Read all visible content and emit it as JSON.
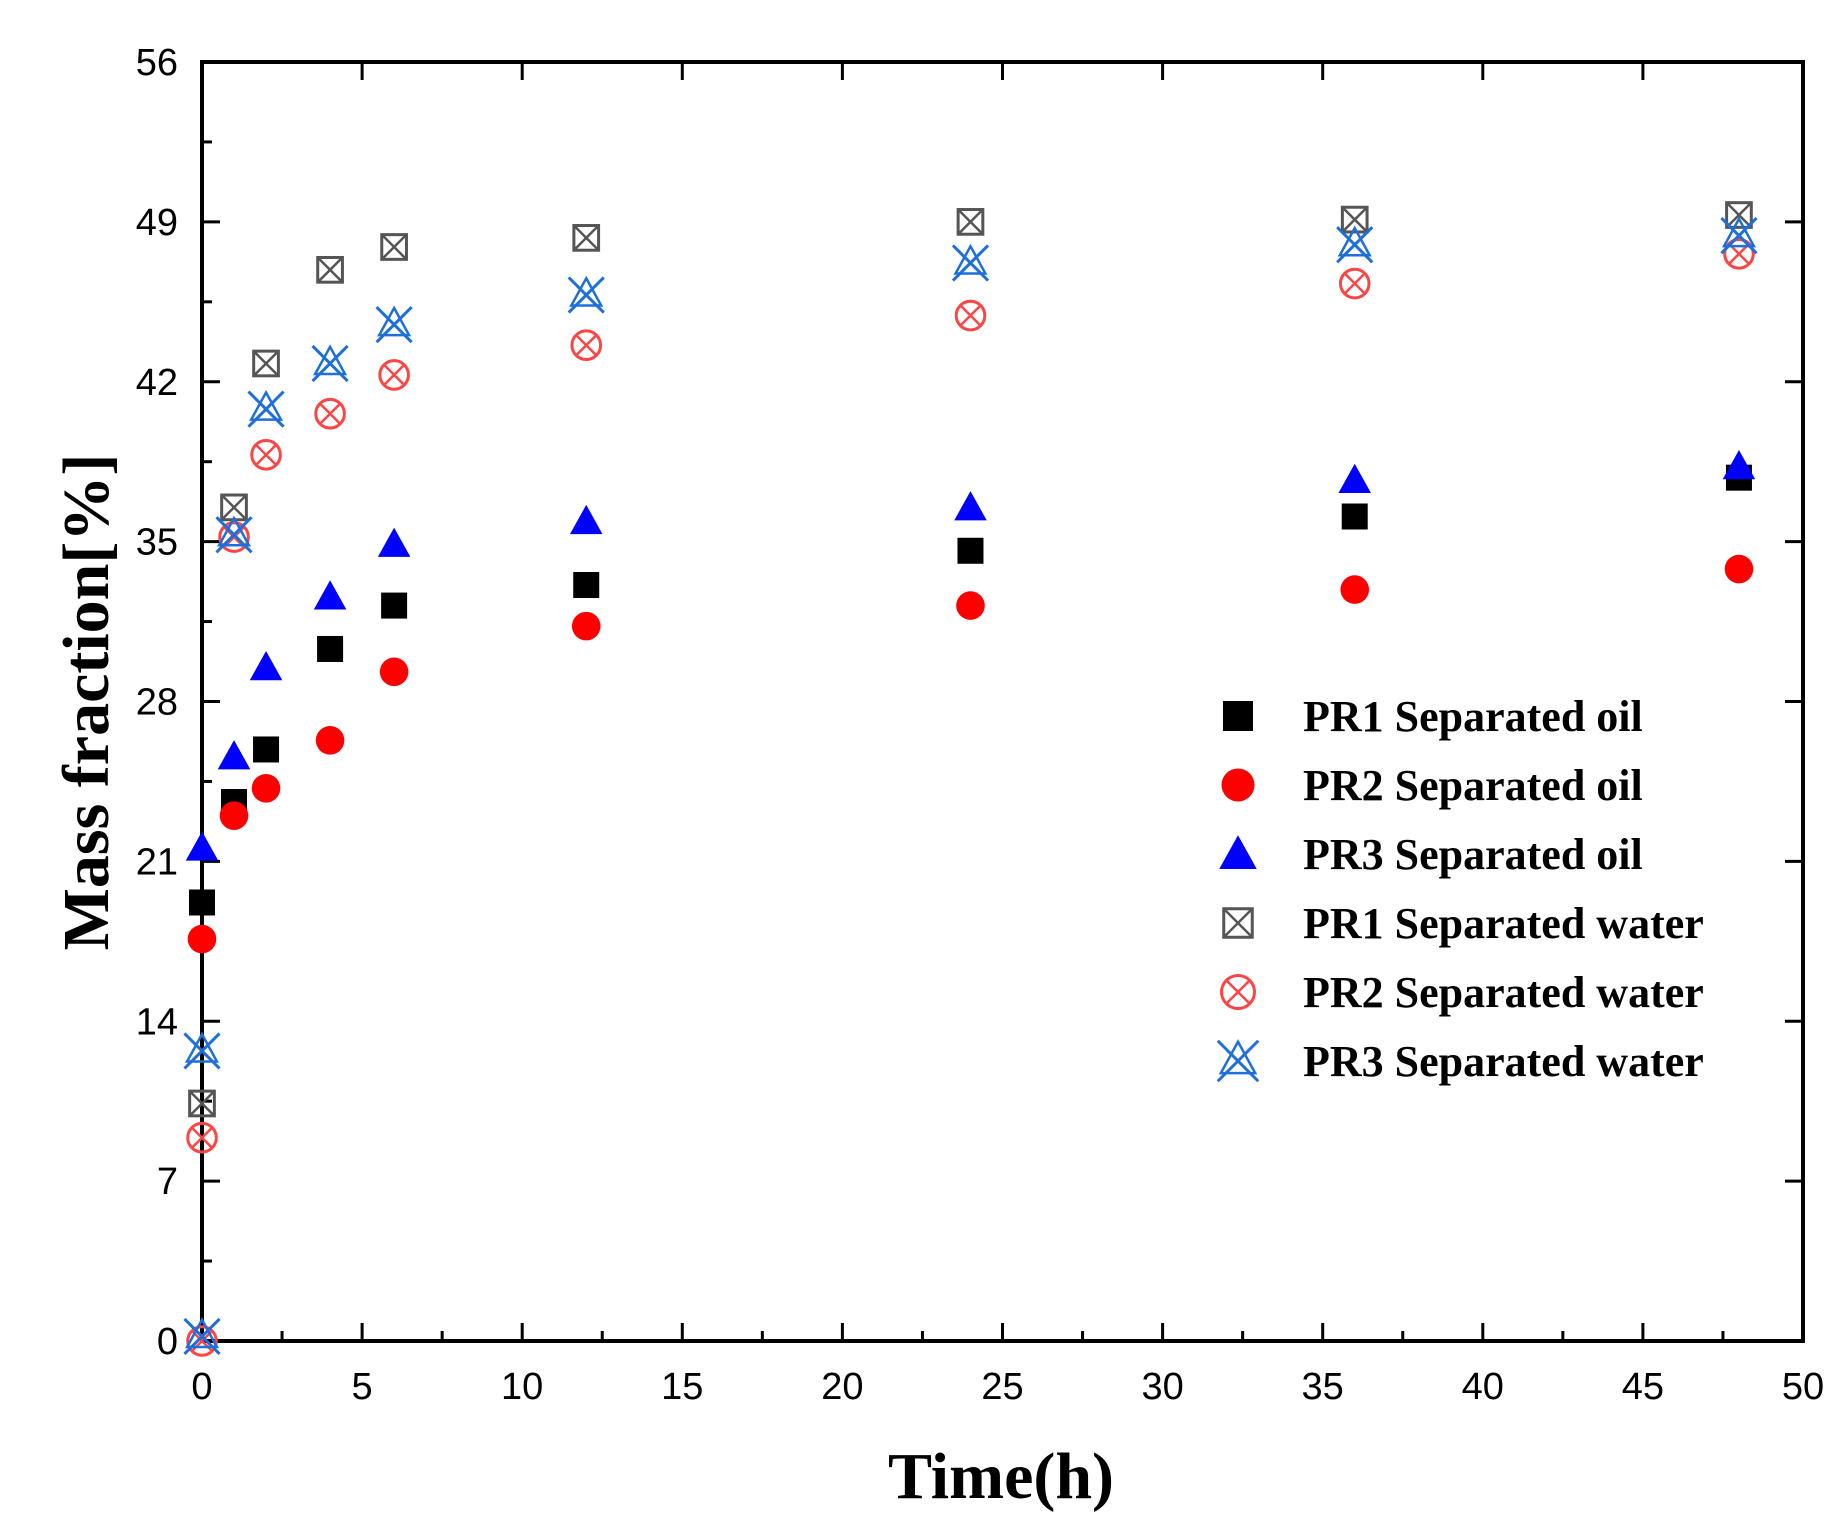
{
  "chart_data": {
    "type": "scatter",
    "title": "",
    "xlabel": "Time(h)",
    "ylabel": "Mass fraction[%]",
    "xlim": [
      0,
      50
    ],
    "ylim": [
      0,
      56
    ],
    "xticks": [
      0,
      5,
      10,
      15,
      20,
      25,
      30,
      35,
      40,
      45,
      50
    ],
    "yticks": [
      0,
      7,
      14,
      21,
      28,
      35,
      42,
      49,
      56
    ],
    "grid": false,
    "legend_position": "right",
    "series": [
      {
        "name": "PR1 Separated oil",
        "marker": "filled-square",
        "color": "#000000",
        "points": [
          [
            0,
            19.2
          ],
          [
            1,
            23.6
          ],
          [
            2,
            25.9
          ],
          [
            4,
            30.3
          ],
          [
            6,
            32.2
          ],
          [
            12,
            33.1
          ],
          [
            24,
            34.6
          ],
          [
            36,
            36.1
          ],
          [
            48,
            37.8
          ]
        ]
      },
      {
        "name": "PR2 Separated oil",
        "marker": "filled-circle",
        "color": "#ff0000",
        "points": [
          [
            0,
            17.6
          ],
          [
            1,
            23.0
          ],
          [
            2,
            24.2
          ],
          [
            4,
            26.3
          ],
          [
            6,
            29.3
          ],
          [
            12,
            31.3
          ],
          [
            24,
            32.2
          ],
          [
            36,
            32.9
          ],
          [
            48,
            33.8
          ]
        ]
      },
      {
        "name": "PR3 Separated oil",
        "marker": "filled-triangle",
        "color": "#0000ff",
        "points": [
          [
            0,
            21.6
          ],
          [
            1,
            25.6
          ],
          [
            2,
            29.5
          ],
          [
            4,
            32.6
          ],
          [
            6,
            34.9
          ],
          [
            12,
            35.9
          ],
          [
            24,
            36.5
          ],
          [
            36,
            37.7
          ],
          [
            48,
            38.3
          ]
        ]
      },
      {
        "name": "PR1 Separated water",
        "marker": "boxed-x",
        "color": "#555555",
        "points": [
          [
            0,
            10.4
          ],
          [
            1,
            36.5
          ],
          [
            2,
            42.8
          ],
          [
            4,
            46.9
          ],
          [
            6,
            47.9
          ],
          [
            12,
            48.3
          ],
          [
            24,
            49.0
          ],
          [
            36,
            49.1
          ],
          [
            48,
            49.3
          ]
        ]
      },
      {
        "name": "PR2 Separated water",
        "marker": "circled-x",
        "color": "#ff4444",
        "points": [
          [
            0,
            0.0
          ],
          [
            0,
            8.9
          ],
          [
            1,
            35.2
          ],
          [
            2,
            38.8
          ],
          [
            4,
            40.6
          ],
          [
            6,
            42.3
          ],
          [
            12,
            43.6
          ],
          [
            24,
            44.9
          ],
          [
            36,
            46.3
          ],
          [
            48,
            47.6
          ]
        ]
      },
      {
        "name": "PR3 Separated water",
        "marker": "star-x",
        "color": "#1e6fd9",
        "points": [
          [
            0,
            0.2
          ],
          [
            0,
            12.7
          ],
          [
            1,
            35.3
          ],
          [
            2,
            40.8
          ],
          [
            4,
            42.8
          ],
          [
            6,
            44.5
          ],
          [
            12,
            45.8
          ],
          [
            24,
            47.2
          ],
          [
            36,
            48.0
          ],
          [
            48,
            48.4
          ]
        ]
      }
    ]
  }
}
